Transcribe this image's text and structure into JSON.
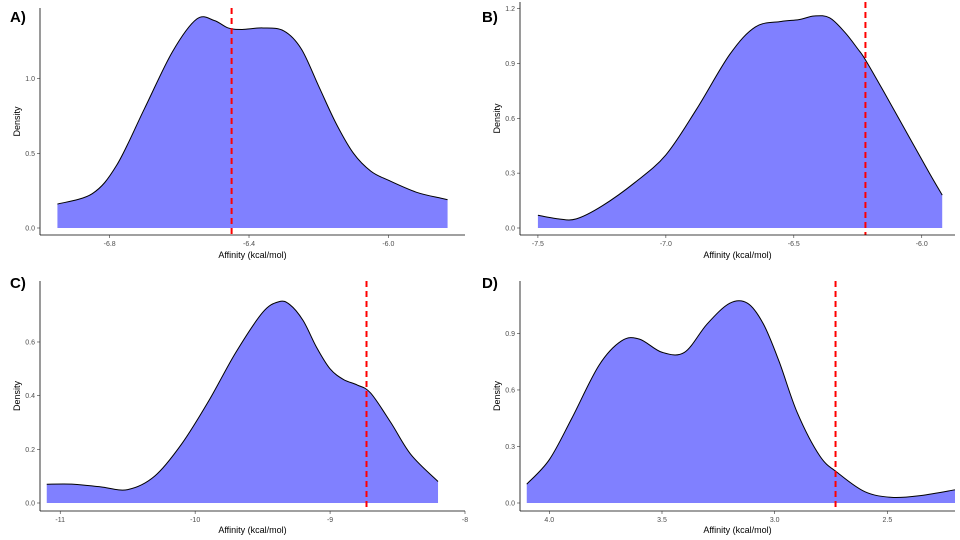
{
  "colors": {
    "fill": "#8080ff",
    "outline": "#000000",
    "ref_line": "#ff0000"
  },
  "chart_data": [
    {
      "panel": "A)",
      "type": "area",
      "xlabel": "Affinity (kcal/mol)",
      "ylabel": "Density",
      "xlim": [
        -7.0,
        -5.78
      ],
      "ylim": [
        -0.05,
        1.42
      ],
      "xticks": [
        -6.8,
        -6.4,
        -6.0
      ],
      "xtick_labels": [
        "-6.8",
        "-6.4",
        "-6.0"
      ],
      "yticks": [
        0.0,
        0.5,
        1.0
      ],
      "ytick_labels": [
        "0.0",
        "0.5",
        "1.0"
      ],
      "vline": -6.45,
      "x": [
        -6.95,
        -6.85,
        -6.78,
        -6.7,
        -6.62,
        -6.55,
        -6.5,
        -6.46,
        -6.42,
        -6.36,
        -6.3,
        -6.25,
        -6.2,
        -6.15,
        -6.1,
        -6.05,
        -6.0,
        -5.92,
        -5.85,
        -5.83
      ],
      "y": [
        0.16,
        0.23,
        0.42,
        0.8,
        1.18,
        1.4,
        1.39,
        1.34,
        1.33,
        1.34,
        1.32,
        1.2,
        0.95,
        0.7,
        0.5,
        0.38,
        0.32,
        0.24,
        0.2,
        0.19
      ]
    },
    {
      "panel": "B)",
      "type": "area",
      "xlabel": "Affinity (kcal/mol)",
      "ylabel": "Density",
      "xlim": [
        -7.57,
        -5.87
      ],
      "ylim": [
        -0.05,
        1.22
      ],
      "xticks": [
        -7.5,
        -7.0,
        -6.5,
        -6.0
      ],
      "xtick_labels": [
        "-7.5",
        "-7.0",
        "-6.5",
        "-6.0"
      ],
      "yticks": [
        0.0,
        0.3,
        0.6,
        0.9,
        1.2
      ],
      "ytick_labels": [
        "0.0",
        "0.3",
        "0.6",
        "0.9",
        "1.2"
      ],
      "vline": -6.22,
      "x": [
        -7.5,
        -7.42,
        -7.35,
        -7.25,
        -7.12,
        -7.0,
        -6.88,
        -6.75,
        -6.65,
        -6.55,
        -6.48,
        -6.42,
        -6.36,
        -6.3,
        -6.25,
        -6.22,
        -6.15,
        -6.05,
        -5.97,
        -5.92
      ],
      "y": [
        0.07,
        0.05,
        0.05,
        0.12,
        0.25,
        0.4,
        0.65,
        0.95,
        1.1,
        1.13,
        1.14,
        1.16,
        1.15,
        1.07,
        0.98,
        0.92,
        0.75,
        0.5,
        0.3,
        0.18
      ]
    },
    {
      "panel": "C)",
      "type": "area",
      "xlabel": "Affinity (kcal/mol)",
      "ylabel": "Density",
      "xlim": [
        -11.15,
        -8.0
      ],
      "ylim": [
        -0.02,
        0.79
      ],
      "xticks": [
        -11,
        -10,
        -9,
        -8
      ],
      "xtick_labels": [
        "-11",
        "-10",
        "-9",
        "-8"
      ],
      "yticks": [
        0.0,
        0.2,
        0.4,
        0.6
      ],
      "ytick_labels": [
        "0.0",
        "0.2",
        "0.4",
        "0.6"
      ],
      "vline": -8.73,
      "x": [
        -11.1,
        -10.9,
        -10.7,
        -10.5,
        -10.3,
        -10.1,
        -9.9,
        -9.7,
        -9.5,
        -9.38,
        -9.3,
        -9.2,
        -9.1,
        -9.0,
        -8.9,
        -8.8,
        -8.7,
        -8.55,
        -8.4,
        -8.2
      ],
      "y": [
        0.07,
        0.07,
        0.06,
        0.05,
        0.1,
        0.22,
        0.38,
        0.56,
        0.71,
        0.75,
        0.74,
        0.68,
        0.58,
        0.5,
        0.46,
        0.44,
        0.41,
        0.3,
        0.18,
        0.08
      ]
    },
    {
      "panel": "D)",
      "type": "area",
      "xlabel": "Affinity (kcal/mol)",
      "ylabel": "Density",
      "xlim": [
        4.13,
        2.2
      ],
      "ylim": [
        -0.03,
        1.12
      ],
      "xticks": [
        4.0,
        3.5,
        3.0,
        2.5
      ],
      "xtick_labels": [
        "4.0",
        "3.5",
        "3.0",
        "2.5"
      ],
      "yticks": [
        0.0,
        0.3,
        0.6,
        0.9
      ],
      "ytick_labels": [
        "0.0",
        "0.3",
        "0.6",
        "0.9"
      ],
      "vline": 2.73,
      "x": [
        4.1,
        4.0,
        3.9,
        3.78,
        3.68,
        3.6,
        3.5,
        3.4,
        3.3,
        3.2,
        3.12,
        3.05,
        2.98,
        2.9,
        2.8,
        2.72,
        2.6,
        2.48,
        2.35,
        2.2
      ],
      "y": [
        0.1,
        0.23,
        0.45,
        0.73,
        0.86,
        0.87,
        0.8,
        0.8,
        0.95,
        1.06,
        1.06,
        0.95,
        0.75,
        0.48,
        0.25,
        0.16,
        0.06,
        0.03,
        0.04,
        0.07
      ]
    }
  ]
}
